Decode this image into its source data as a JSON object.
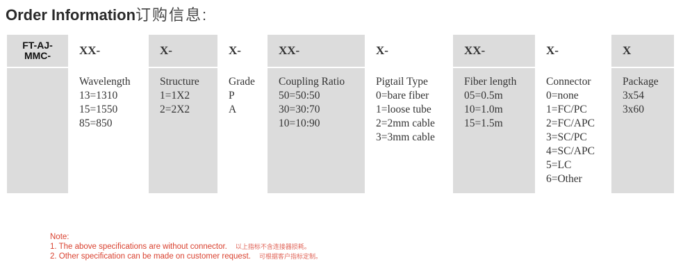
{
  "title": {
    "en": "Order Information",
    "cn": "订购信息:"
  },
  "columns": [
    {
      "code": "FT-AJ-\nMMC-",
      "label": "",
      "items": []
    },
    {
      "code": "XX-",
      "label": "Wavelength",
      "items": [
        "13=1310",
        "15=1550",
        "85=850"
      ]
    },
    {
      "code": "X-",
      "label": "Structure",
      "items": [
        "1=1X2",
        "2=2X2"
      ]
    },
    {
      "code": "X-",
      "label": "Grade",
      "items": [
        "P",
        "A"
      ]
    },
    {
      "code": "XX-",
      "label": "Coupling Ratio",
      "items": [
        "50=50:50",
        "30=30:70",
        "10=10:90"
      ]
    },
    {
      "code": "X-",
      "label": "Pigtail Type",
      "items": [
        "0=bare fiber",
        "1=loose tube",
        "2=2mm cable",
        "3=3mm cable"
      ]
    },
    {
      "code": "XX-",
      "label": "Fiber length",
      "items": [
        "05=0.5m",
        "10=1.0m",
        "15=1.5m"
      ]
    },
    {
      "code": "X-",
      "label": "Connector",
      "items": [
        "0=none",
        "1=FC/PC",
        "2=FC/APC",
        "3=SC/PC",
        "4=SC/APC",
        "5=LC",
        "6=Other"
      ]
    },
    {
      "code": "X",
      "label": "Package",
      "items": [
        "3x54",
        "3x60"
      ]
    }
  ],
  "note": {
    "heading": "Note:",
    "lines": [
      {
        "en": "1. The above specifications are without connector.",
        "cn": "以上指标不含连接器损耗。"
      },
      {
        "en": "2. Other specification can be made on customer request.",
        "cn": "可根据客户指标定制。"
      }
    ]
  }
}
